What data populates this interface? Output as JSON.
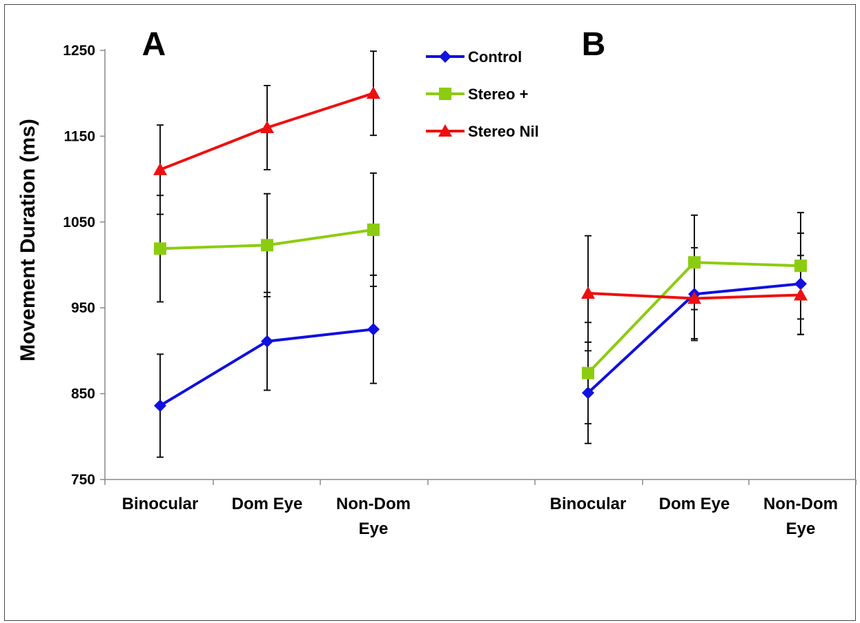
{
  "chart_data": {
    "type": "line",
    "ylabel": "Movement Duration (ms)",
    "ylim": [
      750,
      1250
    ],
    "yticks": [
      "750",
      "850",
      "950",
      "1050",
      "1150",
      "1250"
    ],
    "categories": [
      "Binocular",
      "Dom Eye",
      "Non-Dom Eye"
    ],
    "legend_placement": "top-center",
    "series_meta": [
      {
        "name": "Control",
        "color": "#1010e0",
        "marker": "diamond"
      },
      {
        "name": "Stereo +",
        "color": "#8ccc10",
        "marker": "square"
      },
      {
        "name": "Stereo Nil",
        "color": "#ee1010",
        "marker": "triangle"
      }
    ],
    "panels": [
      {
        "label": "A",
        "series": [
          {
            "name": "Control",
            "values": [
              836,
              911,
              925
            ],
            "errors": [
              60,
              57,
              63
            ]
          },
          {
            "name": "Stereo +",
            "values": [
              1019,
              1023,
              1041
            ],
            "errors": [
              62,
              60,
              66
            ]
          },
          {
            "name": "Stereo Nil",
            "values": [
              1111,
              1160,
              1200
            ],
            "errors": [
              52,
              49,
              49
            ]
          }
        ]
      },
      {
        "label": "B",
        "series": [
          {
            "name": "Control",
            "values": [
              851,
              966,
              978
            ],
            "errors": [
              59,
              54,
              59
            ]
          },
          {
            "name": "Stereo +",
            "values": [
              874,
              1003,
              999
            ],
            "errors": [
              59,
              55,
              62
            ]
          },
          {
            "name": "Stereo Nil",
            "values": [
              967,
              961,
              965
            ],
            "errors": [
              67,
              47,
              46
            ]
          }
        ]
      }
    ]
  }
}
